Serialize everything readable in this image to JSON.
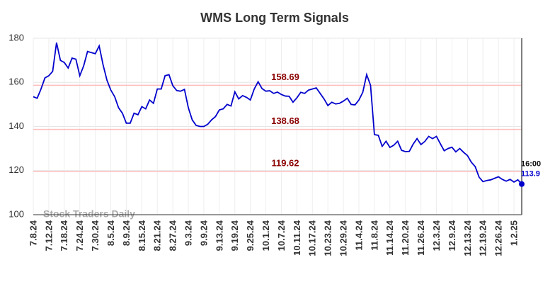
{
  "chart_data": {
    "type": "line",
    "title": "WMS Long Term Signals",
    "watermark": "Stock Traders Daily",
    "categories": [
      "7.8.24",
      null,
      null,
      null,
      "7.12.24",
      null,
      null,
      null,
      "7.18.24",
      null,
      null,
      null,
      "7.24.24",
      null,
      null,
      null,
      "7.30.24",
      null,
      null,
      null,
      "8.5.24",
      null,
      null,
      null,
      "8.9.24",
      null,
      null,
      null,
      "8.15.24",
      null,
      null,
      null,
      "8.21.24",
      null,
      null,
      null,
      "8.27.24",
      null,
      null,
      null,
      "9.3.24",
      null,
      null,
      null,
      "9.9.24",
      null,
      null,
      null,
      "9.13.24",
      null,
      null,
      null,
      "9.19.24",
      null,
      null,
      null,
      "9.25.24",
      null,
      null,
      null,
      "10.1.24",
      null,
      null,
      null,
      "10.7.24",
      null,
      null,
      null,
      "10.11.24",
      null,
      null,
      null,
      "10.17.24",
      null,
      null,
      null,
      "10.23.24",
      null,
      null,
      null,
      "10.29.24",
      null,
      null,
      null,
      "11.4.24",
      null,
      null,
      null,
      "11.8.24",
      null,
      null,
      null,
      "11.14.24",
      null,
      null,
      null,
      "11.20.24",
      null,
      null,
      null,
      "11.26.24",
      null,
      null,
      null,
      "12.3.24",
      null,
      null,
      null,
      "12.9.24",
      null,
      null,
      null,
      "12.13.24",
      null,
      null,
      null,
      "12.19.24",
      null,
      null,
      null,
      "12.26.24",
      null,
      null,
      null,
      "1.2.25",
      null,
      null
    ],
    "series": [
      {
        "name": "WMS",
        "color": "#0000cc",
        "values": [
          153.5,
          152.8,
          157,
          162,
          163,
          165,
          178,
          170,
          169,
          166.5,
          171,
          170.5,
          163,
          167.5,
          174,
          173.5,
          173,
          176.5,
          168,
          161,
          156.5,
          153.5,
          148.5,
          146,
          141.5,
          141.5,
          146,
          145.3,
          149,
          148,
          152,
          150.5,
          157,
          157,
          163,
          163.5,
          158.5,
          156.3,
          156,
          156.8,
          148.5,
          143,
          140.5,
          140,
          140,
          141,
          143,
          144.5,
          147.5,
          148,
          150,
          149.3,
          155.7,
          152.5,
          154,
          153.2,
          152,
          157,
          160.3,
          157.2,
          156,
          156.2,
          155,
          155.6,
          154.5,
          153.8,
          153.7,
          151,
          153,
          155.5,
          155,
          156.5,
          157,
          157.5,
          155,
          152.5,
          149.5,
          151,
          150.2,
          150.5,
          151.5,
          152.8,
          150,
          149.8,
          152,
          155.5,
          163.5,
          158.7,
          136.3,
          136,
          131,
          133.3,
          130.5,
          131.5,
          133.3,
          129.2,
          128.6,
          128.7,
          132,
          134.5,
          131.8,
          133.2,
          135.5,
          134.5,
          135.5,
          132.2,
          129,
          130,
          130.6,
          128.5,
          130,
          128.3,
          126.8,
          123.8,
          121.8,
          117,
          115,
          115.5,
          115.8,
          116.5,
          117.2,
          116,
          115.2,
          116,
          114.8,
          115.8,
          113.9
        ]
      }
    ],
    "hlines": [
      158.69,
      138.68,
      119.62
    ],
    "hline_color": "#ffbbbb",
    "hline_label_color": "#8b0000",
    "last_time_label": "16:00",
    "ylim": [
      100,
      180
    ],
    "yticks": [
      100,
      120,
      140,
      160,
      180
    ],
    "grid": true
  }
}
